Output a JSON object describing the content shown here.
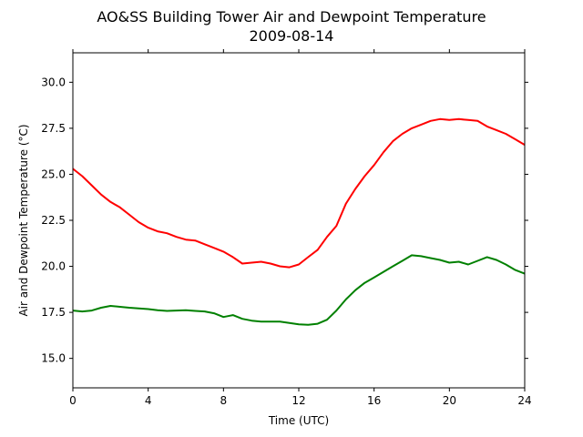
{
  "chart_data": {
    "type": "line",
    "title": "AO&SS Building Tower Air and Dewpoint Temperature",
    "subtitle": "2009-08-14",
    "xlabel": "Time (UTC)",
    "ylabel": "Air and Dewpoint Temperature (°C)",
    "xlim": [
      0,
      24
    ],
    "ylim": [
      13.4,
      31.6
    ],
    "xticks": [
      0,
      4,
      8,
      12,
      16,
      20,
      24
    ],
    "xtick_labels": [
      "0",
      "4",
      "8",
      "12",
      "16",
      "20",
      "24"
    ],
    "yticks": [
      15.0,
      17.5,
      20.0,
      22.5,
      25.0,
      27.5,
      30.0
    ],
    "ytick_labels": [
      "15.0",
      "17.5",
      "20.0",
      "22.5",
      "25.0",
      "27.5",
      "30.0"
    ],
    "grid": false,
    "legend": "none",
    "series": [
      {
        "color": "#ff0000",
        "x": [
          0,
          0.5,
          1,
          1.5,
          2,
          2.5,
          3,
          3.5,
          4,
          4.5,
          5,
          5.5,
          6,
          6.5,
          7,
          7.5,
          8,
          8.5,
          9,
          9.5,
          10,
          10.5,
          11,
          11.5,
          12,
          12.5,
          13,
          13.5,
          14,
          14.5,
          15,
          15.5,
          16,
          16.5,
          17,
          17.5,
          18,
          18.5,
          19,
          19.5,
          20,
          20.5,
          21,
          21.5,
          22,
          22.5,
          23,
          23.5,
          24
        ],
        "y": [
          25.3,
          24.9,
          24.4,
          23.9,
          23.5,
          23.2,
          22.8,
          22.4,
          22.1,
          21.9,
          21.8,
          21.6,
          21.45,
          21.4,
          21.2,
          21.0,
          20.8,
          20.5,
          20.15,
          20.2,
          20.25,
          20.15,
          20.0,
          19.95,
          20.1,
          20.5,
          20.9,
          21.6,
          22.2,
          23.4,
          24.2,
          24.9,
          25.5,
          26.2,
          26.8,
          27.2,
          27.5,
          27.7,
          27.9,
          28.0,
          27.95,
          28.0,
          27.95,
          27.9,
          27.6,
          27.4,
          27.2,
          26.9,
          26.6
        ]
      },
      {
        "color": "#008000",
        "x": [
          0,
          0.5,
          1,
          1.5,
          2,
          2.5,
          3,
          3.5,
          4,
          4.5,
          5,
          5.5,
          6,
          6.5,
          7,
          7.5,
          8,
          8.5,
          9,
          9.5,
          10,
          10.5,
          11,
          11.5,
          12,
          12.5,
          13,
          13.5,
          14,
          14.5,
          15,
          15.5,
          16,
          16.5,
          17,
          17.5,
          18,
          18.5,
          19,
          19.5,
          20,
          20.5,
          21,
          21.5,
          22,
          22.5,
          23,
          23.5,
          24
        ],
        "y": [
          17.6,
          17.55,
          17.6,
          17.75,
          17.85,
          17.8,
          17.75,
          17.72,
          17.68,
          17.62,
          17.58,
          17.6,
          17.62,
          17.58,
          17.55,
          17.45,
          17.25,
          17.35,
          17.15,
          17.05,
          17.0,
          17.0,
          17.0,
          16.92,
          16.85,
          16.82,
          16.88,
          17.1,
          17.6,
          18.2,
          18.7,
          19.1,
          19.4,
          19.7,
          20.0,
          20.3,
          20.6,
          20.55,
          20.45,
          20.35,
          20.2,
          20.25,
          20.1,
          20.3,
          20.5,
          20.35,
          20.1,
          19.8,
          19.6
        ]
      }
    ]
  }
}
